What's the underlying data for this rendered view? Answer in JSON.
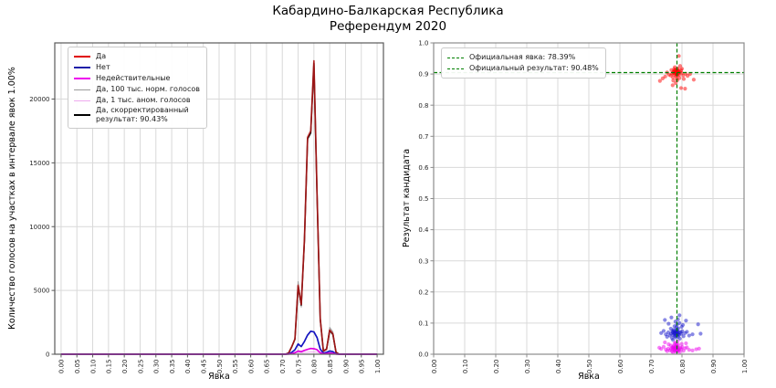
{
  "title": {
    "line1": "Кабардино-Балкарская Республика",
    "line2": "Референдум 2020"
  },
  "chart_data": [
    {
      "type": "line",
      "xlabel": "Явка",
      "ylabel": "Количество голосов на участках в интервале явок 1.00%",
      "xlim": [
        -0.02,
        1.02
      ],
      "ylim": [
        0,
        24400
      ],
      "grid": true,
      "legend_position": "upper left",
      "x_ticks": [
        "0.00",
        "0.05",
        "0.10",
        "0.15",
        "0.20",
        "0.25",
        "0.30",
        "0.35",
        "0.40",
        "0.45",
        "0.50",
        "0.55",
        "0.60",
        "0.65",
        "0.70",
        "0.75",
        "0.80",
        "0.85",
        "0.90",
        "0.95",
        "1.00"
      ],
      "y_ticks": [
        "0",
        "5000",
        "10000",
        "15000",
        "20000"
      ],
      "bin_start": 0.7,
      "bin_step": 0.01,
      "note": "values are votes per 1% turnout bin; all bins outside 0.70-0.88 are 0",
      "series": [
        {
          "name": "Да",
          "legend": [
            "Да"
          ],
          "color": "#e00000",
          "draw_color": "#b01818",
          "width": 1.7,
          "values": [
            0,
            0,
            100,
            600,
            1200,
            5400,
            3900,
            9000,
            17000,
            17500,
            23000,
            12500,
            2800,
            250,
            400,
            1900,
            1600,
            150,
            0
          ]
        },
        {
          "name": "Нет",
          "legend": [
            "Нет"
          ],
          "color": "#1f1fa8",
          "draw_color": "#1414c0",
          "width": 1.7,
          "values": [
            0,
            0,
            30,
            150,
            350,
            800,
            600,
            1000,
            1500,
            1800,
            1750,
            1300,
            400,
            80,
            150,
            250,
            200,
            30,
            0
          ]
        },
        {
          "name": "Недействительные",
          "legend": [
            "Недействительные"
          ],
          "color": "#ee00ee",
          "draw_color": "#e000e0",
          "width": 1.7,
          "values": [
            0,
            0,
            10,
            50,
            120,
            250,
            200,
            300,
            380,
            450,
            430,
            350,
            120,
            30,
            60,
            90,
            70,
            10,
            0
          ]
        },
        {
          "name": "Да, 100 тыс. норм. голосов",
          "legend": [
            "Да, 100 тыс. норм. голосов"
          ],
          "color": "#9a9a9a",
          "draw_color": "#9a9a9a",
          "width": 1,
          "values": [
            0,
            0,
            80,
            550,
            1150,
            5700,
            3700,
            8800,
            16800,
            17300,
            22900,
            12300,
            2700,
            300,
            450,
            2100,
            1750,
            200,
            0
          ]
        },
        {
          "name": "Да, 1 тыс. аном. голосов",
          "legend": [
            "Да, 1 тыс. аном. голосов"
          ],
          "color": "#eeaaee",
          "draw_color": "#eeaaee",
          "width": 1,
          "values": [
            0,
            0,
            20,
            60,
            90,
            150,
            120,
            140,
            160,
            170,
            180,
            150,
            80,
            20,
            30,
            60,
            50,
            10,
            0
          ]
        },
        {
          "name": "Да, скорректированный результат: 90.43%",
          "legend": [
            "Да, скорректированный",
            "результат: 90.43%"
          ],
          "color": "#000000",
          "draw_color": "#000000",
          "width": 1.5,
          "values": [
            0,
            0,
            90,
            580,
            1180,
            5300,
            3850,
            8900,
            16900,
            17350,
            22800,
            12400,
            2750,
            240,
            380,
            1850,
            1550,
            140,
            0
          ]
        }
      ]
    },
    {
      "type": "scatter",
      "xlabel": "Явка",
      "ylabel": "Результат кандидата",
      "xlim": [
        0,
        1
      ],
      "ylim": [
        0,
        1
      ],
      "grid": true,
      "x_ticks": [
        "0.00",
        "0.10",
        "0.20",
        "0.30",
        "0.40",
        "0.50",
        "0.60",
        "0.70",
        "0.80",
        "0.90",
        "1.00"
      ],
      "y_ticks": [
        "0.0",
        "0.1",
        "0.2",
        "0.3",
        "0.4",
        "0.5",
        "0.6",
        "0.7",
        "0.8",
        "0.9",
        "1.0"
      ],
      "official_turnout": 0.7839,
      "official_result": 0.9048,
      "reference_line_color": "#007f00",
      "legend": [
        {
          "label": "Официальная явка: 78.39%",
          "color": "#007f00"
        },
        {
          "label": "Официальный результат: 90.48%",
          "color": "#007f00"
        }
      ],
      "clusters": [
        {
          "name": "Да",
          "color": "#ff0000",
          "points": [
            [
              0.772,
              0.906
            ],
            [
              0.778,
              0.911
            ],
            [
              0.781,
              0.902
            ],
            [
              0.785,
              0.908
            ],
            [
              0.789,
              0.905
            ],
            [
              0.776,
              0.898
            ],
            [
              0.783,
              0.913
            ],
            [
              0.787,
              0.9
            ],
            [
              0.78,
              0.907
            ],
            [
              0.774,
              0.903
            ],
            [
              0.79,
              0.91
            ],
            [
              0.784,
              0.896
            ],
            [
              0.779,
              0.904
            ],
            [
              0.786,
              0.909
            ],
            [
              0.782,
              0.899
            ],
            [
              0.777,
              0.912
            ],
            [
              0.788,
              0.903
            ],
            [
              0.773,
              0.908
            ],
            [
              0.785,
              0.915
            ],
            [
              0.791,
              0.897
            ],
            [
              0.768,
              0.901
            ],
            [
              0.794,
              0.906
            ],
            [
              0.781,
              0.893
            ],
            [
              0.775,
              0.916
            ],
            [
              0.787,
              0.918
            ],
            [
              0.764,
              0.895
            ],
            [
              0.797,
              0.912
            ],
            [
              0.771,
              0.889
            ],
            [
              0.8,
              0.903
            ],
            [
              0.783,
              0.885
            ],
            [
              0.758,
              0.898
            ],
            [
              0.804,
              0.895
            ],
            [
              0.777,
              0.922
            ],
            [
              0.792,
              0.887
            ],
            [
              0.746,
              0.892
            ],
            [
              0.812,
              0.901
            ],
            [
              0.785,
              0.88
            ],
            [
              0.766,
              0.913
            ],
            [
              0.8,
              0.917
            ],
            [
              0.752,
              0.905
            ],
            [
              0.818,
              0.894
            ],
            [
              0.772,
              0.879
            ],
            [
              0.794,
              0.926
            ],
            [
              0.738,
              0.886
            ],
            [
              0.826,
              0.9
            ],
            [
              0.78,
              0.871
            ],
            [
              0.806,
              0.884
            ],
            [
              0.729,
              0.878
            ],
            [
              0.838,
              0.882
            ],
            [
              0.79,
              0.958
            ],
            [
              0.797,
              0.855
            ],
            [
              0.81,
              0.853
            ],
            [
              0.77,
              0.864
            ]
          ]
        },
        {
          "name": "Нет",
          "color": "#1414cc",
          "points": [
            [
              0.77,
              0.07
            ],
            [
              0.776,
              0.065
            ],
            [
              0.78,
              0.072
            ],
            [
              0.784,
              0.068
            ],
            [
              0.788,
              0.063
            ],
            [
              0.774,
              0.075
            ],
            [
              0.782,
              0.06
            ],
            [
              0.786,
              0.073
            ],
            [
              0.778,
              0.067
            ],
            [
              0.772,
              0.062
            ],
            [
              0.79,
              0.07
            ],
            [
              0.783,
              0.076
            ],
            [
              0.777,
              0.058
            ],
            [
              0.785,
              0.064
            ],
            [
              0.781,
              0.071
            ],
            [
              0.775,
              0.069
            ],
            [
              0.787,
              0.056
            ],
            [
              0.769,
              0.074
            ],
            [
              0.784,
              0.08
            ],
            [
              0.791,
              0.062
            ],
            [
              0.765,
              0.066
            ],
            [
              0.795,
              0.071
            ],
            [
              0.78,
              0.054
            ],
            [
              0.773,
              0.078
            ],
            [
              0.788,
              0.083
            ],
            [
              0.761,
              0.06
            ],
            [
              0.798,
              0.066
            ],
            [
              0.768,
              0.052
            ],
            [
              0.801,
              0.074
            ],
            [
              0.782,
              0.086
            ],
            [
              0.756,
              0.07
            ],
            [
              0.805,
              0.058
            ],
            [
              0.776,
              0.09
            ],
            [
              0.793,
              0.05
            ],
            [
              0.748,
              0.064
            ],
            [
              0.81,
              0.068
            ],
            [
              0.784,
              0.095
            ],
            [
              0.764,
              0.082
            ],
            [
              0.799,
              0.088
            ],
            [
              0.752,
              0.056
            ],
            [
              0.816,
              0.072
            ],
            [
              0.771,
              0.046
            ],
            [
              0.792,
              0.1
            ],
            [
              0.741,
              0.075
            ],
            [
              0.823,
              0.06
            ],
            [
              0.779,
              0.105
            ],
            [
              0.803,
              0.094
            ],
            [
              0.733,
              0.068
            ],
            [
              0.834,
              0.064
            ],
            [
              0.787,
              0.112
            ],
            [
              0.757,
              0.098
            ],
            [
              0.813,
              0.108
            ],
            [
              0.745,
              0.11
            ],
            [
              0.792,
              0.125
            ],
            [
              0.766,
              0.118
            ],
            [
              0.852,
              0.096
            ],
            [
              0.86,
              0.066
            ]
          ]
        },
        {
          "name": "Недействительные",
          "color": "#ee00ee",
          "points": [
            [
              0.77,
              0.02
            ],
            [
              0.776,
              0.016
            ],
            [
              0.78,
              0.022
            ],
            [
              0.784,
              0.018
            ],
            [
              0.788,
              0.014
            ],
            [
              0.774,
              0.024
            ],
            [
              0.782,
              0.012
            ],
            [
              0.786,
              0.021
            ],
            [
              0.778,
              0.017
            ],
            [
              0.772,
              0.015
            ],
            [
              0.79,
              0.019
            ],
            [
              0.783,
              0.025
            ],
            [
              0.777,
              0.011
            ],
            [
              0.785,
              0.015
            ],
            [
              0.781,
              0.023
            ],
            [
              0.775,
              0.02
            ],
            [
              0.787,
              0.01
            ],
            [
              0.769,
              0.022
            ],
            [
              0.784,
              0.027
            ],
            [
              0.791,
              0.013
            ],
            [
              0.765,
              0.017
            ],
            [
              0.795,
              0.021
            ],
            [
              0.78,
              0.008
            ],
            [
              0.773,
              0.026
            ],
            [
              0.788,
              0.03
            ],
            [
              0.761,
              0.012
            ],
            [
              0.798,
              0.016
            ],
            [
              0.768,
              0.009
            ],
            [
              0.801,
              0.023
            ],
            [
              0.782,
              0.032
            ],
            [
              0.756,
              0.018
            ],
            [
              0.805,
              0.011
            ],
            [
              0.776,
              0.034
            ],
            [
              0.793,
              0.007
            ],
            [
              0.748,
              0.015
            ],
            [
              0.81,
              0.019
            ],
            [
              0.764,
              0.028
            ],
            [
              0.799,
              0.033
            ],
            [
              0.752,
              0.01
            ],
            [
              0.816,
              0.022
            ],
            [
              0.771,
              0.006
            ],
            [
              0.741,
              0.024
            ],
            [
              0.823,
              0.014
            ],
            [
              0.779,
              0.037
            ],
            [
              0.733,
              0.017
            ],
            [
              0.834,
              0.012
            ],
            [
              0.757,
              0.032
            ],
            [
              0.813,
              0.035
            ],
            [
              0.745,
              0.038
            ],
            [
              0.727,
              0.021
            ],
            [
              0.846,
              0.016
            ],
            [
              0.855,
              0.018
            ],
            [
              0.786,
              0.041
            ]
          ]
        }
      ]
    }
  ]
}
